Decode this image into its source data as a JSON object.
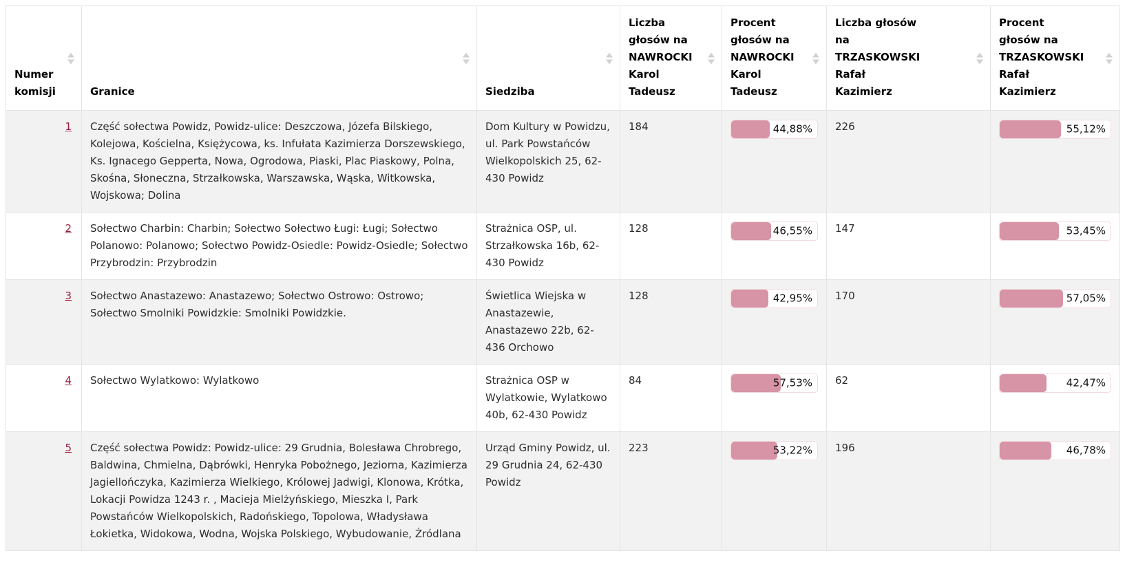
{
  "colors": {
    "bar_fill": "#d794a6",
    "bar_border": "#f3d9e0",
    "link": "#9d1c3d",
    "row_stripe": "#f2f2f2",
    "sort_icon": "#d2d2d2"
  },
  "table": {
    "columns": {
      "numer": "Numer komisji",
      "granice": "Granice",
      "siedziba": "Siedziba",
      "nawrocki_votes": "Liczba głosów na NAWROCKI Karol Tadeusz",
      "nawrocki_pct": "Procent głosów na NAWROCKI Karol Tadeusz",
      "trzaskowski_votes": "Liczba głosów na TRZASKOWSKI Rafał Kazimierz",
      "trzaskowski_pct": "Procent głosów na TRZASKOWSKI Rafał Kazimierz"
    },
    "rows": [
      {
        "number": "1",
        "granice": "Część sołectwa Powidz, Powidz-ulice: Deszczowa, Józefa Bilskiego, Kolejowa, Kościelna, Księżycowa, ks. Infułata Kazimierza Dorszewskiego, Ks. Ignacego Gepperta, Nowa, Ogrodowa, Piaski, Plac Piaskowy, Polna, Skośna, Słoneczna, Strzałkowska, Warszawska, Wąska, Witkowska, Wojskowa; Dolina",
        "siedziba": "Dom Kultury w Powidzu, ul. Park Powstańców Wielkopolskich 25, 62-430 Powidz",
        "nawrocki_votes": "184",
        "nawrocki_pct_label": "44,88%",
        "nawrocki_pct_value": 44.88,
        "trzaskowski_votes": "226",
        "trzaskowski_pct_label": "55,12%",
        "trzaskowski_pct_value": 55.12
      },
      {
        "number": "2",
        "granice": "Sołectwo Charbin: Charbin; Sołectwo Sołectwo Ługi: Ługi; Sołectwo Polanowo: Polanowo; Sołectwo Powidz-Osiedle: Powidz-Osiedle; Sołectwo Przybrodzin: Przybrodzin",
        "siedziba": "Strażnica OSP, ul. Strzałkowska 16b, 62-430 Powidz",
        "nawrocki_votes": "128",
        "nawrocki_pct_label": "46,55%",
        "nawrocki_pct_value": 46.55,
        "trzaskowski_votes": "147",
        "trzaskowski_pct_label": "53,45%",
        "trzaskowski_pct_value": 53.45
      },
      {
        "number": "3",
        "granice": "Sołectwo Anastazewo: Anastazewo; Sołectwo Ostrowo: Ostrowo; Sołectwo Smolniki Powidzkie: Smolniki Powidzkie.",
        "siedziba": "Świetlica Wiejska w Anastazewie, Anastazewo 22b, 62-436 Orchowo",
        "nawrocki_votes": "128",
        "nawrocki_pct_label": "42,95%",
        "nawrocki_pct_value": 42.95,
        "trzaskowski_votes": "170",
        "trzaskowski_pct_label": "57,05%",
        "trzaskowski_pct_value": 57.05
      },
      {
        "number": "4",
        "granice": "Sołectwo Wylatkowo: Wylatkowo",
        "siedziba": "Strażnica OSP w Wylatkowie, Wylatkowo 40b, 62-430 Powidz",
        "nawrocki_votes": "84",
        "nawrocki_pct_label": "57,53%",
        "nawrocki_pct_value": 57.53,
        "trzaskowski_votes": "62",
        "trzaskowski_pct_label": "42,47%",
        "trzaskowski_pct_value": 42.47
      },
      {
        "number": "5",
        "granice": "Część sołectwa Powidz: Powidz-ulice: 29 Grudnia, Bolesława Chrobrego, Baldwina, Chmielna, Dąbrówki, Henryka Pobożnego, Jeziorna, Kazimierza Jagiellończyka, Kazimierza Wielkiego, Królowej Jadwigi, Klonowa, Krótka, Lokacji Powidza 1243 r. , Macieja Mielżyńskiego, Mieszka I, Park Powstańców Wielkopolskich, Radońskiego, Topolowa, Władysława Łokietka, Widokowa, Wodna, Wojska Polskiego, Wybudowanie, Źródlana",
        "siedziba": "Urząd Gminy Powidz, ul. 29 Grudnia 24, 62-430 Powidz",
        "nawrocki_votes": "223",
        "nawrocki_pct_label": "53,22%",
        "nawrocki_pct_value": 53.22,
        "trzaskowski_votes": "196",
        "trzaskowski_pct_label": "46,78%",
        "trzaskowski_pct_value": 46.78
      }
    ]
  }
}
